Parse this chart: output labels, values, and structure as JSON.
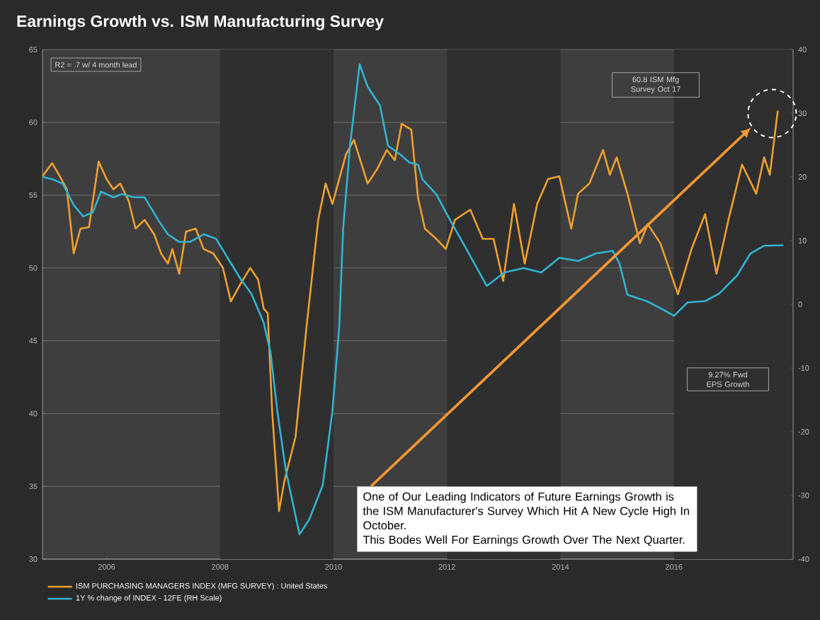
{
  "chart_data": {
    "type": "line",
    "title": "Earnings Growth vs. ISM Manufacturing Survey",
    "xlim": [
      2004.87,
      2018.1
    ],
    "xticks": [
      2006,
      2008,
      2010,
      2012,
      2014,
      2016
    ],
    "ylim": [
      30,
      65
    ],
    "yticks": [
      30,
      35,
      40,
      45,
      50,
      55,
      60,
      65
    ],
    "y2lim": [
      -40,
      40
    ],
    "y2ticks": [
      -40,
      -30,
      -20,
      -10,
      0,
      10,
      20,
      30,
      40
    ],
    "grid": "y",
    "legend": "bottom",
    "bands": [
      {
        "axis": "x",
        "from": 2008,
        "to": 2010,
        "color": "#2f2f2f"
      },
      {
        "axis": "x",
        "from": 2012,
        "to": 2014,
        "color": "#2f2f2f"
      },
      {
        "axis": "x",
        "from": 2016,
        "to": 2018.1,
        "color": "#2f2f2f"
      }
    ],
    "series": [
      {
        "name": "ISM PURCHASING MANAGERS INDEX (MFG SURVEY) : United States",
        "color": "#f0a030",
        "axis": "y",
        "x": [
          2004.87,
          2005.04,
          2005.16,
          2005.3,
          2005.42,
          2005.54,
          2005.69,
          2005.86,
          2006.0,
          2006.12,
          2006.24,
          2006.39,
          2006.51,
          2006.67,
          2006.84,
          2006.96,
          2007.08,
          2007.16,
          2007.28,
          2007.4,
          2007.57,
          2007.71,
          2007.88,
          2008.05,
          2008.19,
          2008.36,
          2008.53,
          2008.67,
          2008.77,
          2008.84,
          2008.92,
          2009.04,
          2009.13,
          2009.33,
          2009.52,
          2009.73,
          2009.86,
          2009.98,
          2010.22,
          2010.36,
          2010.6,
          2010.77,
          2010.94,
          2011.08,
          2011.2,
          2011.37,
          2011.49,
          2011.61,
          2011.81,
          2011.98,
          2012.14,
          2012.41,
          2012.63,
          2012.82,
          2012.99,
          2013.18,
          2013.37,
          2013.59,
          2013.78,
          2013.98,
          2014.19,
          2014.31,
          2014.51,
          2014.75,
          2014.87,
          2014.99,
          2015.18,
          2015.4,
          2015.54,
          2015.76,
          2016.07,
          2016.31,
          2016.55,
          2016.75,
          2016.96,
          2017.2,
          2017.45,
          2017.59,
          2017.69,
          2017.83
        ],
        "values": [
          56.3,
          57.2,
          56.4,
          55.4,
          51.0,
          52.7,
          52.8,
          57.3,
          56.1,
          55.4,
          55.8,
          54.6,
          52.7,
          53.3,
          52.3,
          51.0,
          50.3,
          51.3,
          49.6,
          52.5,
          52.7,
          51.3,
          51.0,
          50.0,
          47.7,
          48.9,
          50.0,
          49.2,
          47.2,
          46.9,
          40.0,
          33.3,
          35.3,
          38.4,
          45.8,
          53.3,
          55.8,
          54.4,
          57.8,
          58.8,
          55.8,
          56.8,
          58.1,
          57.4,
          59.9,
          59.5,
          54.8,
          52.7,
          52.0,
          51.3,
          53.3,
          54.0,
          52.0,
          52.0,
          49.1,
          54.4,
          50.3,
          54.4,
          56.1,
          56.3,
          52.7,
          55.1,
          55.8,
          58.1,
          56.4,
          57.6,
          55.1,
          51.7,
          53.0,
          51.7,
          48.2,
          51.3,
          53.7,
          49.6,
          53.3,
          57.1,
          55.1,
          57.6,
          56.4,
          60.8
        ]
      },
      {
        "name": "1Y % change of INDEX - 12FE (RH Scale)",
        "color": "#30b4d2",
        "axis": "y2",
        "x": [
          2004.87,
          2005.06,
          2005.23,
          2005.42,
          2005.59,
          2005.76,
          2005.9,
          2006.12,
          2006.27,
          2006.48,
          2006.67,
          2006.92,
          2007.08,
          2007.28,
          2007.47,
          2007.71,
          2007.93,
          2008.12,
          2008.36,
          2008.55,
          2008.77,
          2008.89,
          2009.01,
          2009.16,
          2009.4,
          2009.57,
          2009.81,
          2009.98,
          2010.1,
          2010.17,
          2010.29,
          2010.46,
          2010.6,
          2010.82,
          2010.96,
          2011.18,
          2011.33,
          2011.49,
          2011.57,
          2011.81,
          2012.05,
          2012.34,
          2012.7,
          2013.01,
          2013.35,
          2013.66,
          2013.98,
          2014.31,
          2014.63,
          2014.92,
          2015.04,
          2015.18,
          2015.52,
          2015.76,
          2016.0,
          2016.24,
          2016.55,
          2016.8,
          2017.11,
          2017.35,
          2017.59,
          2017.93
        ],
        "values": [
          20.0,
          19.6,
          18.9,
          15.6,
          13.8,
          14.5,
          17.7,
          16.8,
          17.3,
          16.8,
          16.8,
          13.1,
          11.0,
          9.8,
          9.8,
          11.0,
          10.3,
          7.5,
          4.0,
          1.7,
          -2.9,
          -7.6,
          -16.8,
          -26.1,
          -36.1,
          -33.8,
          -28.4,
          -16.8,
          -3.6,
          11.9,
          24.9,
          37.7,
          34.2,
          31.2,
          24.9,
          23.5,
          22.3,
          21.9,
          19.6,
          17.3,
          13.3,
          8.7,
          2.9,
          5.0,
          5.7,
          5.0,
          7.3,
          6.8,
          8.0,
          8.4,
          6.4,
          1.5,
          0.5,
          -0.6,
          -1.8,
          0.3,
          0.5,
          1.7,
          4.5,
          8.0,
          9.2,
          9.27
        ]
      }
    ],
    "annotations": [
      "R2 = .7 w/ 4 month lead",
      "60.8 ISM Mfg Survey Oct 17",
      "9.27% Fwd EPS Growth",
      "One of Our Leading Indicators of Future Earnings Growth is the ISM Manufacturer's Survey Which Hit A New Cycle High In October.",
      "This Bodes Well For Earnings Growth Over The Next Quarter."
    ]
  }
}
